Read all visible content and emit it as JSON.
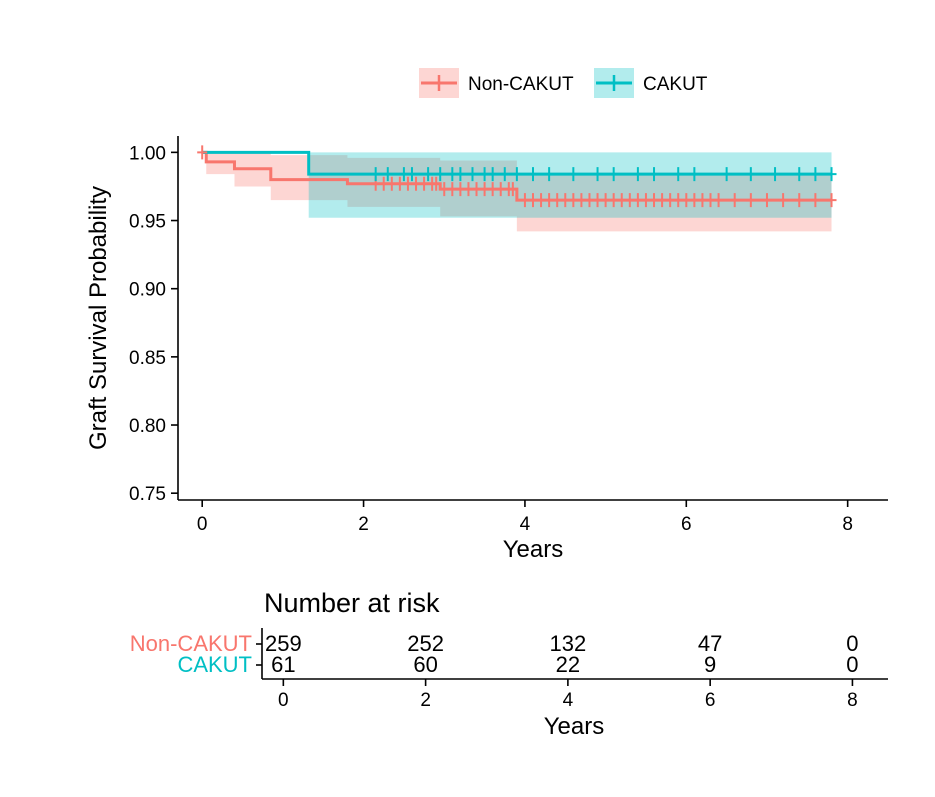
{
  "colors": {
    "non_cakut": "#F8766D",
    "cakut": "#00BFC4",
    "axis": "#000000"
  },
  "legend": {
    "position": "top",
    "items": [
      {
        "label": "Non-CAKUT",
        "color": "#F8766D"
      },
      {
        "label": "CAKUT",
        "color": "#00BFC4"
      }
    ]
  },
  "chart_data": [
    {
      "type": "line",
      "subtype": "kaplan-meier",
      "xlabel": "Years",
      "ylabel": "Graft Survival Probability",
      "xlim": [
        -0.3,
        8.5
      ],
      "ylim": [
        0.745,
        1.012
      ],
      "xticks": [
        "0",
        "2",
        "4",
        "6",
        "8"
      ],
      "yticks": [
        "0.75",
        "0.80",
        "0.85",
        "0.90",
        "0.95",
        "1.00"
      ],
      "grid": false,
      "series": [
        {
          "name": "Non-CAKUT",
          "color": "#F8766D",
          "steps": [
            [
              0,
              1.0
            ],
            [
              0.05,
              0.993
            ],
            [
              0.4,
              0.988
            ],
            [
              0.85,
              0.98
            ],
            [
              1.8,
              0.977
            ],
            [
              2.95,
              0.973
            ],
            [
              3.9,
              0.965
            ],
            [
              7.8,
              0.965
            ]
          ],
          "ci_upper": [
            [
              0,
              1.0
            ],
            [
              0.05,
              1.0
            ],
            [
              0.85,
              0.998
            ],
            [
              1.8,
              0.996
            ],
            [
              2.95,
              0.994
            ],
            [
              3.9,
              0.985
            ],
            [
              7.8,
              0.985
            ]
          ],
          "ci_lower": [
            [
              0,
              1.0
            ],
            [
              0.05,
              0.984
            ],
            [
              0.4,
              0.975
            ],
            [
              0.85,
              0.965
            ],
            [
              1.8,
              0.96
            ],
            [
              2.95,
              0.953
            ],
            [
              3.9,
              0.942
            ],
            [
              7.8,
              0.942
            ]
          ],
          "censor_times": [
            0.0,
            2.15,
            2.25,
            2.35,
            2.45,
            2.55,
            2.65,
            2.75,
            2.85,
            2.9,
            3.0,
            3.1,
            3.2,
            3.3,
            3.4,
            3.5,
            3.6,
            3.7,
            3.8,
            3.85,
            4.0,
            4.1,
            4.2,
            4.3,
            4.4,
            4.5,
            4.6,
            4.7,
            4.8,
            4.9,
            5.0,
            5.1,
            5.2,
            5.3,
            5.4,
            5.5,
            5.6,
            5.7,
            5.8,
            5.9,
            6.0,
            6.1,
            6.2,
            6.3,
            6.4,
            6.6,
            6.8,
            7.0,
            7.2,
            7.4,
            7.6,
            7.8
          ]
        },
        {
          "name": "CAKUT",
          "color": "#00BFC4",
          "steps": [
            [
              0,
              1.0
            ],
            [
              1.32,
              0.984
            ],
            [
              7.8,
              0.984
            ]
          ],
          "ci_upper": [
            [
              0,
              1.0
            ],
            [
              7.8,
              1.0
            ]
          ],
          "ci_lower": [
            [
              0,
              1.0
            ],
            [
              1.32,
              0.952
            ],
            [
              7.8,
              0.952
            ]
          ],
          "censor_times": [
            2.15,
            2.3,
            2.5,
            2.6,
            2.8,
            2.95,
            3.1,
            3.2,
            3.35,
            3.5,
            3.6,
            3.75,
            3.9,
            4.1,
            4.3,
            4.6,
            4.9,
            5.1,
            5.4,
            5.6,
            5.9,
            6.1,
            6.5,
            6.8,
            7.1,
            7.4,
            7.6,
            7.8
          ]
        }
      ]
    },
    {
      "type": "table",
      "title": "Number at risk",
      "xlabel": "Years",
      "xlim": [
        -0.3,
        8.5
      ],
      "xticks": [
        "0",
        "2",
        "4",
        "6",
        "8"
      ],
      "times": [
        0,
        2,
        4,
        6,
        8
      ],
      "rows": [
        {
          "name": "Non-CAKUT",
          "color": "#F8766D",
          "values": [
            "259",
            "252",
            "132",
            "47",
            "0"
          ]
        },
        {
          "name": "CAKUT",
          "color": "#00BFC4",
          "values": [
            "61",
            "60",
            "22",
            "9",
            "0"
          ]
        }
      ]
    }
  ]
}
